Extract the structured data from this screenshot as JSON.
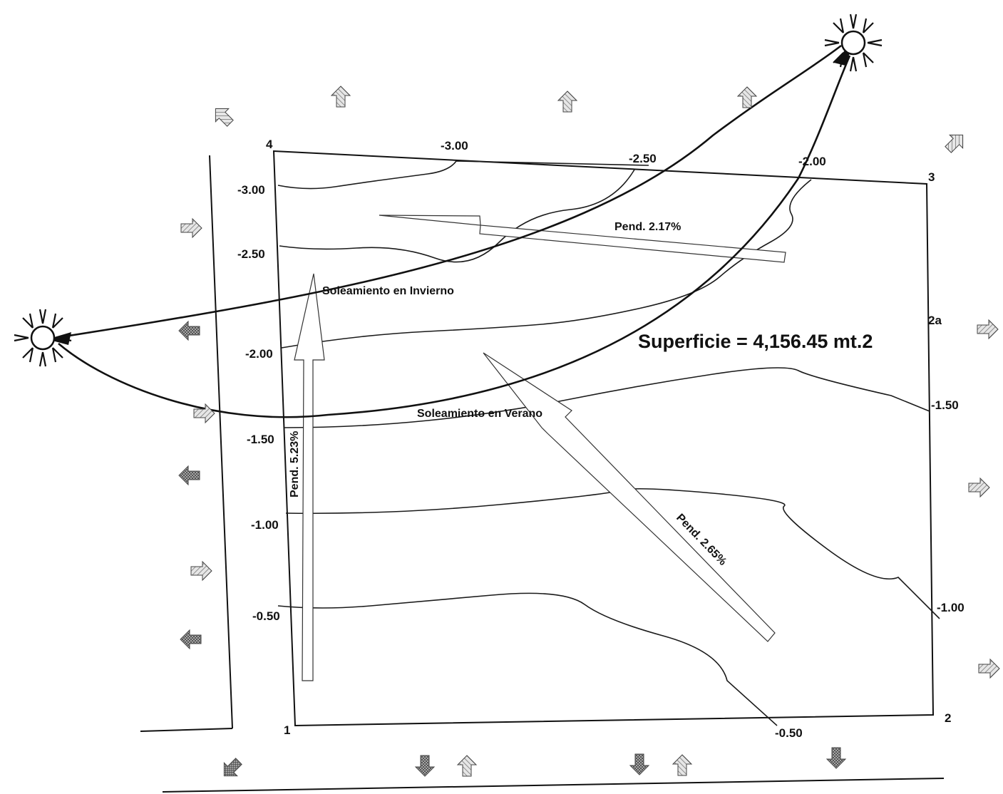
{
  "plot": {
    "vertices": {
      "v1": "1",
      "v2": "2",
      "v2a": "2a",
      "v3": "3",
      "v4": "4"
    },
    "area_label": "Superficie = 4,156.45 mt.2"
  },
  "contours": {
    "left": [
      "-3.00",
      "-2.50",
      "-2.00",
      "-1.50",
      "-1.00",
      "-0.50"
    ],
    "top": [
      "-3.00",
      "-2.50",
      "-2.00"
    ],
    "right": [
      "-1.50",
      "-1.00"
    ],
    "bottom": [
      "-0.50"
    ]
  },
  "slopes": {
    "vertical": "Pend. 5.23%",
    "horizontal": "Pend. 2.17%",
    "diagonal": "Pend. 2.65%"
  },
  "sun": {
    "winter_label": "Soleamiento en Invierno",
    "summer_label": "Soleamiento en Verano"
  }
}
